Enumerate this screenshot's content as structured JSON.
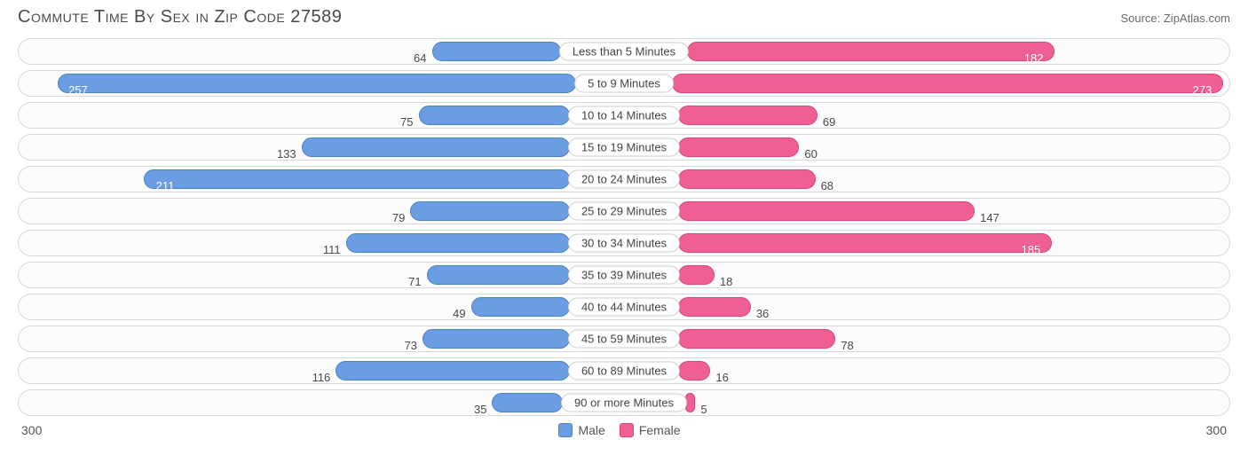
{
  "title": "Commute Time By Sex in Zip Code 27589",
  "source": "Source: ZipAtlas.com",
  "chart": {
    "type": "diverging-bar",
    "axis_max": 300,
    "axis_left_label": "300",
    "axis_right_label": "300",
    "male_color": "#6b9de2",
    "male_border": "#4b7fc6",
    "female_color": "#ef5f93",
    "female_border": "#d9437a",
    "track_border": "#d8d8d8",
    "track_bg": "#fcfcfc",
    "categories": [
      {
        "label": "Less than 5 Minutes",
        "male": 64,
        "female": 182
      },
      {
        "label": "5 to 9 Minutes",
        "male": 257,
        "female": 273
      },
      {
        "label": "10 to 14 Minutes",
        "male": 75,
        "female": 69
      },
      {
        "label": "15 to 19 Minutes",
        "male": 133,
        "female": 60
      },
      {
        "label": "20 to 24 Minutes",
        "male": 211,
        "female": 68
      },
      {
        "label": "25 to 29 Minutes",
        "male": 79,
        "female": 147
      },
      {
        "label": "30 to 34 Minutes",
        "male": 111,
        "female": 185
      },
      {
        "label": "35 to 39 Minutes",
        "male": 71,
        "female": 18
      },
      {
        "label": "40 to 44 Minutes",
        "male": 49,
        "female": 36
      },
      {
        "label": "45 to 59 Minutes",
        "male": 73,
        "female": 78
      },
      {
        "label": "60 to 89 Minutes",
        "male": 116,
        "female": 16
      },
      {
        "label": "90 or more Minutes",
        "male": 35,
        "female": 5
      }
    ]
  },
  "legend": {
    "male": "Male",
    "female": "Female"
  }
}
